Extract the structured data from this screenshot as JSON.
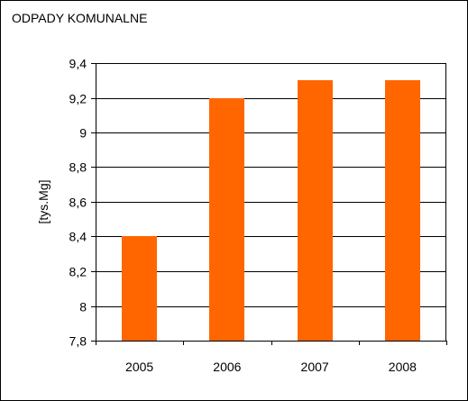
{
  "chart_data": {
    "type": "bar",
    "title": "ODPADY KOMUNALNE",
    "xlabel": "",
    "ylabel": "[tys.Mg]",
    "categories": [
      "2005",
      "2006",
      "2007",
      "2008"
    ],
    "values": [
      8.4,
      9.2,
      9.3,
      9.3
    ],
    "ylim": [
      7.8,
      9.4
    ],
    "y_ticks": [
      7.8,
      8.0,
      8.2,
      8.4,
      8.6,
      8.8,
      9.0,
      9.2,
      9.4
    ],
    "y_tick_labels": [
      "7,8",
      "8",
      "8,2",
      "8,4",
      "8,6",
      "8,8",
      "9",
      "9,2",
      "9,4"
    ],
    "grid": true,
    "legend": "none",
    "bar_color": "#FF6600",
    "grid_color": "#000000"
  }
}
